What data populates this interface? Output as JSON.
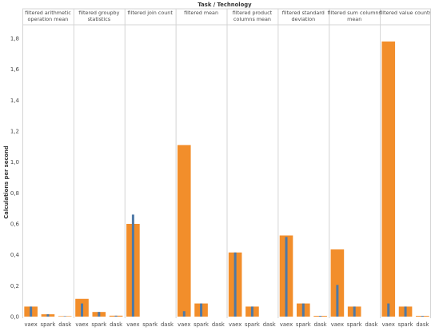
{
  "chart_data": {
    "type": "bar",
    "title": "Task / Technology",
    "ylabel": "Calculations per second",
    "xlabel": "",
    "ylim": [
      0,
      1.9
    ],
    "y_ticks": [
      "0,0",
      "0,2",
      "0,4",
      "0,6",
      "0,8",
      "1,0",
      "1,2",
      "1,4",
      "1,6",
      "1,8"
    ],
    "y_tick_values": [
      0,
      0.2,
      0.4,
      0.6,
      0.8,
      1.0,
      1.2,
      1.4,
      1.6,
      1.8
    ],
    "grid": false,
    "categories": [
      "vaex",
      "spark",
      "dask"
    ],
    "panels": [
      {
        "title_lines": [
          "filtered arithmetic",
          "operation mean"
        ],
        "orange": [
          0.065,
          0.015,
          0.003
        ],
        "blue": [
          0.065,
          0.015,
          0.003
        ]
      },
      {
        "title_lines": [
          "filtered groupby",
          "statistics"
        ],
        "orange": [
          0.115,
          0.03,
          0.006
        ],
        "blue": [
          0.085,
          0.03,
          0.006
        ]
      },
      {
        "title_lines": [
          "filtered join count"
        ],
        "orange": [
          0.6,
          0.0,
          0.0
        ],
        "blue": [
          0.66,
          0.0,
          0.0
        ]
      },
      {
        "title_lines": [
          "filtered mean"
        ],
        "orange": [
          1.11,
          0.085,
          0.0
        ],
        "blue": [
          0.035,
          0.085,
          0.0
        ]
      },
      {
        "title_lines": [
          "filtered product",
          "columns mean"
        ],
        "orange": [
          0.415,
          0.065,
          0.0
        ],
        "blue": [
          0.415,
          0.065,
          0.0
        ]
      },
      {
        "title_lines": [
          "filtered standard",
          "deviation"
        ],
        "orange": [
          0.525,
          0.085,
          0.005
        ],
        "blue": [
          0.515,
          0.085,
          0.005
        ]
      },
      {
        "title_lines": [
          "filtered sum columns",
          "mean"
        ],
        "orange": [
          0.435,
          0.065,
          0.0
        ],
        "blue": [
          0.205,
          0.065,
          0.0
        ]
      },
      {
        "title_lines": [
          "filtered value counts"
        ],
        "orange": [
          1.78,
          0.065,
          0.005
        ],
        "blue": [
          0.085,
          0.065,
          0.005
        ]
      }
    ],
    "colors": {
      "orange": "#F28E2B",
      "blue": "#4E79A7",
      "divider": "#d4d4d4",
      "text": "#4a4a4a"
    }
  }
}
